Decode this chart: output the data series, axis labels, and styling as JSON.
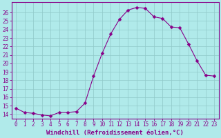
{
  "x": [
    0,
    1,
    2,
    3,
    4,
    5,
    6,
    7,
    8,
    9,
    10,
    11,
    12,
    13,
    14,
    15,
    16,
    17,
    18,
    19,
    20,
    21,
    22,
    23
  ],
  "y": [
    14.7,
    14.2,
    14.1,
    13.9,
    13.8,
    14.2,
    14.2,
    14.3,
    15.3,
    18.5,
    21.2,
    23.5,
    25.2,
    26.3,
    26.6,
    26.5,
    25.5,
    25.3,
    24.3,
    24.2,
    22.3,
    20.3,
    18.6,
    18.5
  ],
  "line_color": "#880088",
  "marker": "D",
  "marker_size": 2.5,
  "bg_color": "#b0eaea",
  "grid_color": "#90c8c8",
  "ylim": [
    13.5,
    27.2
  ],
  "xlim": [
    -0.5,
    23.5
  ],
  "yticks": [
    14,
    15,
    16,
    17,
    18,
    19,
    20,
    21,
    22,
    23,
    24,
    25,
    26
  ],
  "xticks": [
    0,
    1,
    2,
    3,
    4,
    5,
    6,
    7,
    8,
    9,
    10,
    11,
    12,
    13,
    14,
    15,
    16,
    17,
    18,
    19,
    20,
    21,
    22,
    23
  ],
  "axis_color": "#880088",
  "xlabel": "Windchill (Refroidissement éolien,°C)",
  "label_fontsize": 6.5,
  "tick_fontsize": 5.5
}
